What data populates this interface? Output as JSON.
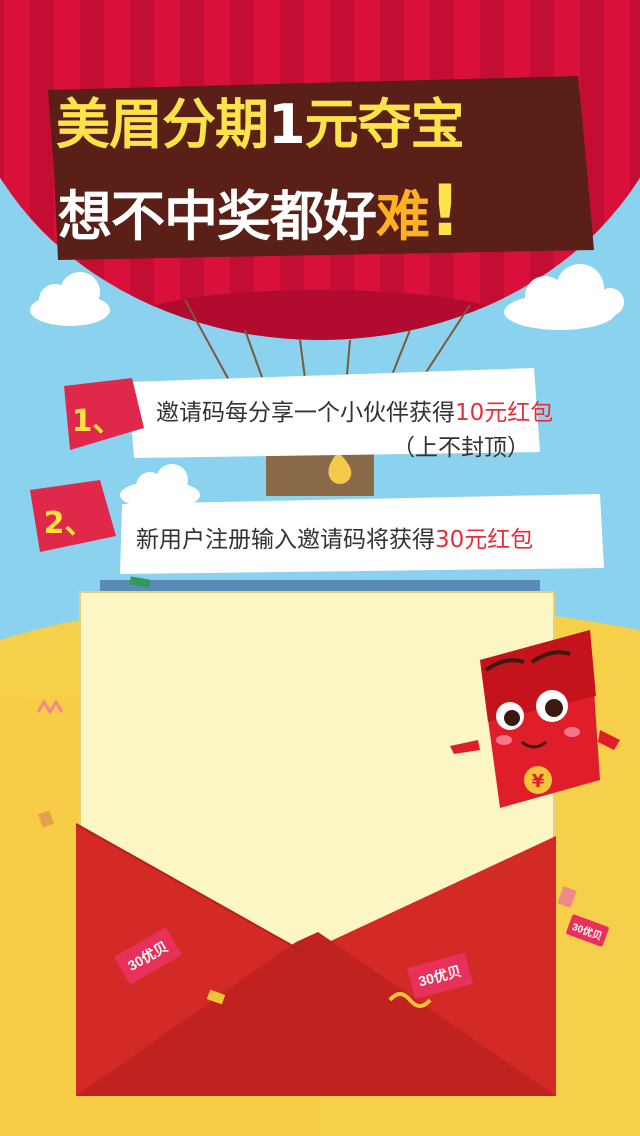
{
  "title": {
    "line1": [
      "美眉分期",
      "1",
      "元夺宝"
    ],
    "line2": [
      "想不中奖都好",
      "难",
      "!"
    ]
  },
  "steps": [
    {
      "badge": "1、",
      "text": "邀请码每分享一个小伙伴获得",
      "highlight": "10元红包",
      "sub": "（上不封顶）"
    },
    {
      "badge": "2、",
      "text": "新用户注册输入邀请码将获得",
      "highlight": "30元红包"
    }
  ],
  "envelope": {
    "left_tag": "30优贝",
    "right_tag": "30优贝",
    "mascot_symbol": "¥",
    "corner_tag": "30优贝"
  },
  "colors": {
    "sky": "#8bd2ee",
    "balloon_red": "#d9113a",
    "title_yellow": "#fde34a",
    "highlight_red": "#e82d3a",
    "envelope_red": "#d42a26",
    "ground_yellow": "#f7d04b"
  }
}
